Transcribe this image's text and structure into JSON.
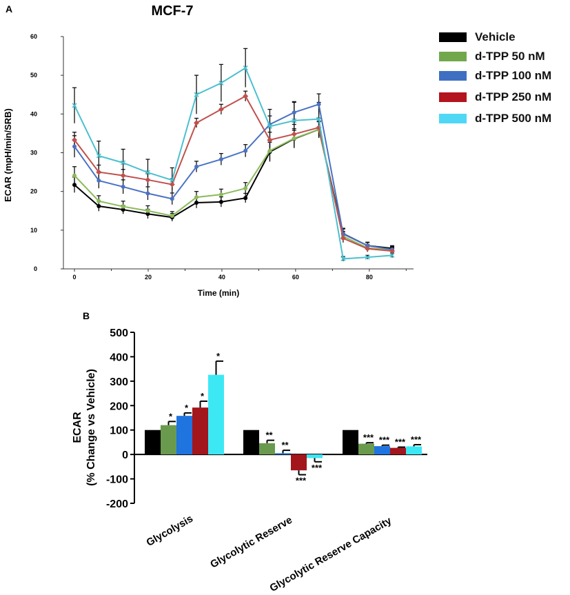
{
  "panels": {
    "a": "A",
    "b": "B"
  },
  "chart_data": [
    {
      "type": "line",
      "title": "MCF-7",
      "xlabel": "Time (min)",
      "ylabel": "ECAR (mpH/min/SRB)",
      "xlim": [
        -3,
        92
      ],
      "ylim": [
        0,
        60
      ],
      "x_ticks": [
        0,
        20,
        40,
        60,
        80
      ],
      "y_ticks": [
        0,
        10,
        20,
        30,
        40,
        50,
        60
      ],
      "x": [
        0,
        6.6,
        13.2,
        19.9,
        26.5,
        33.1,
        39.8,
        46.4,
        53.0,
        59.6,
        66.3,
        72.9,
        79.5,
        86.2
      ],
      "series": [
        {
          "name": "Vehicle",
          "color": "#000000",
          "marker": "circle",
          "values": [
            21.7,
            16.2,
            15.3,
            14.2,
            13.3,
            17.1,
            17.3,
            18.3,
            30.2,
            33.6,
            36.0,
            9.1,
            6.0,
            5.3
          ],
          "errors": [
            2.0,
            1.3,
            1.1,
            1.2,
            1.0,
            1.4,
            1.3,
            1.2,
            2.5,
            2.2,
            2.0,
            1.4,
            0.8,
            0.7
          ]
        },
        {
          "name": "d-TPP 50 nM",
          "color": "#8aba5a",
          "marker": "circle",
          "values": [
            24.1,
            17.5,
            16.1,
            15.0,
            13.7,
            18.5,
            19.2,
            20.8,
            30.5,
            33.7,
            36.0,
            8.4,
            5.4,
            4.8
          ],
          "errors": [
            2.3,
            1.4,
            1.4,
            1.3,
            1.1,
            1.5,
            1.4,
            1.5,
            2.6,
            2.5,
            2.2,
            1.3,
            0.9,
            0.8
          ]
        },
        {
          "name": "d-TPP 100 nM",
          "color": "#4a72c4",
          "marker": "circle",
          "values": [
            31.6,
            22.8,
            21.2,
            19.5,
            18.1,
            26.4,
            28.3,
            30.5,
            37.3,
            40.4,
            42.5,
            9.0,
            6.0,
            5.0
          ],
          "errors": [
            2.8,
            2.0,
            1.8,
            1.7,
            1.5,
            1.4,
            1.5,
            1.6,
            2.2,
            2.8,
            2.7,
            1.3,
            0.9,
            0.8
          ]
        },
        {
          "name": "d-TPP 250 nM",
          "color": "#c0504d",
          "marker": "diamond",
          "values": [
            33.3,
            25.0,
            24.1,
            23.0,
            21.8,
            37.7,
            41.2,
            44.6,
            33.3,
            34.8,
            36.5,
            7.9,
            5.2,
            4.6
          ],
          "errors": [
            2.0,
            1.8,
            1.6,
            1.7,
            1.5,
            1.2,
            1.3,
            1.3,
            2.0,
            2.5,
            2.4,
            1.1,
            0.8,
            0.7
          ]
        },
        {
          "name": "d-TPP 500 nM",
          "color": "#4bc0cf",
          "marker": "x",
          "values": [
            42.2,
            29.2,
            27.4,
            24.9,
            22.9,
            45.0,
            48.0,
            51.9,
            36.8,
            38.3,
            38.7,
            2.6,
            3.0,
            3.5
          ],
          "errors": [
            4.6,
            3.8,
            3.5,
            3.4,
            3.2,
            5.0,
            4.8,
            5.0,
            4.4,
            4.7,
            4.3,
            0.6,
            0.5,
            0.6
          ]
        }
      ]
    },
    {
      "type": "bar",
      "ylabel": "ECAR",
      "ylabel2": "(% Change vs Vehicle)",
      "ylim": [
        -200,
        500
      ],
      "y_ticks": [
        -200,
        -100,
        0,
        100,
        200,
        300,
        400,
        500
      ],
      "categories": [
        "Glycolysis",
        "Glycolytic Reserve",
        "Glycolytic Reserve Capacity"
      ],
      "series": [
        {
          "name": "Vehicle",
          "color": "#000000",
          "values": [
            100,
            100,
            100
          ],
          "errors": [
            0,
            0,
            0
          ],
          "sig": [
            "",
            "",
            ""
          ]
        },
        {
          "name": "d-TPP 50 nM",
          "color": "#6a9a4e",
          "values": [
            120,
            46,
            44
          ],
          "errors": [
            15,
            12,
            4
          ],
          "sig": [
            "*",
            "**",
            "***"
          ]
        },
        {
          "name": "d-TPP 100 nM",
          "color": "#1f74e0",
          "values": [
            158,
            5,
            34
          ],
          "errors": [
            12,
            12,
            4
          ],
          "sig": [
            "*",
            "**",
            "***"
          ]
        },
        {
          "name": "d-TPP 250 nM",
          "color": "#a3161c",
          "values": [
            192,
            -65,
            27
          ],
          "errors": [
            26,
            18,
            3
          ],
          "sig": [
            "*",
            "***",
            "***"
          ]
        },
        {
          "name": "d-TPP 500 nM",
          "color": "#3de8f5",
          "values": [
            326,
            -15,
            33
          ],
          "errors": [
            56,
            15,
            7
          ],
          "sig": [
            "*",
            "***",
            "***"
          ]
        }
      ]
    }
  ],
  "legend": [
    {
      "label": "Vehicle",
      "color": "#000000"
    },
    {
      "label": "d-TPP 50 nM",
      "color": "#72a84c"
    },
    {
      "label": "d-TPP 100 nM",
      "color": "#3f6fc2"
    },
    {
      "label": "d-TPP 250 nM",
      "color": "#b3141d"
    },
    {
      "label": "d-TPP 500 nM",
      "color": "#4fd8f5"
    }
  ]
}
